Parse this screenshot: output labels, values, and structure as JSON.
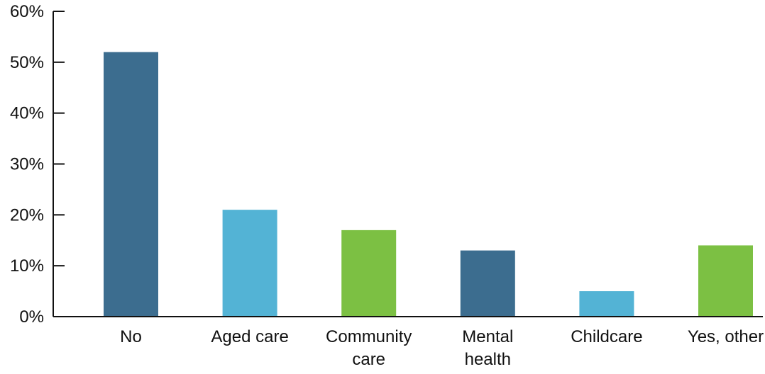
{
  "chart_data": {
    "type": "bar",
    "categories": [
      [
        "No"
      ],
      [
        "Aged care"
      ],
      [
        "Community",
        "care"
      ],
      [
        "Mental",
        "health"
      ],
      [
        "Childcare"
      ],
      [
        "Yes, other"
      ]
    ],
    "values": [
      52,
      21,
      17,
      13,
      5,
      14
    ],
    "colors": [
      "#3c6d8f",
      "#53b3d5",
      "#7cc043",
      "#3c6d8f",
      "#53b3d5",
      "#7cc043"
    ],
    "ylim": [
      0,
      60
    ],
    "yticks": [
      0,
      10,
      20,
      30,
      40,
      50,
      60
    ],
    "ytick_labels": [
      "0%",
      "10%",
      "20%",
      "30%",
      "40%",
      "50%",
      "60%"
    ],
    "grid": false,
    "title": "",
    "xlabel": "",
    "ylabel": ""
  }
}
